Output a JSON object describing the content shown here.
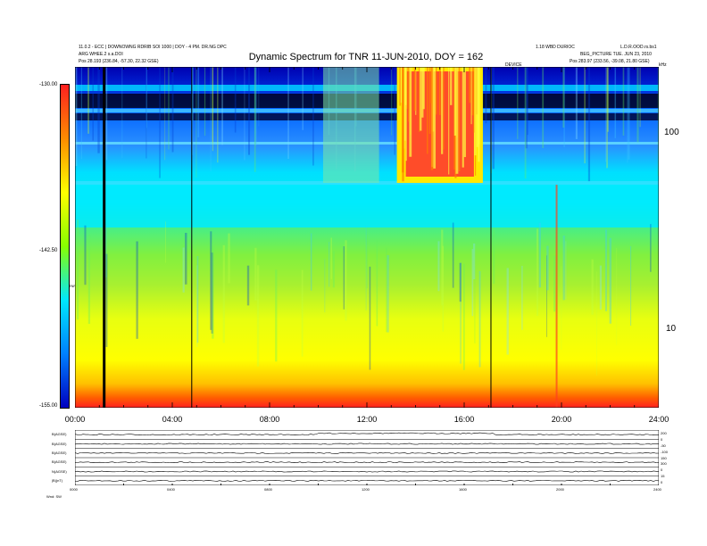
{
  "header": {
    "title": "Dynamic Spectrum for TNR 11-JUN-2010, DOY = 162",
    "left_info_line1": "11.0.2 - ECC | DOWNOWNG RDRIB SOI 1000 | DOY - 4 PM. DR.NG DPC",
    "left_info_line2": "ARG WHEE.2 s.a.DOI",
    "left_info_line3": "Pos 28.193 (236.84, -57.30, 22.32 GSE)",
    "right_info_line1": "1.18 WBD DURIOC",
    "right_info_line2": "L.D.R.OOD.rs.bs1",
    "right_info_line3": "BEG_PICTURE TUE. JUN 23, 2010",
    "right_info_line4": "Pos 283.97 (233.56, -39.08, 21.80 GSE)",
    "mid_tag": "DEVICE",
    "khz_tag": "kHz"
  },
  "colorbar": {
    "top_label": "-130.00",
    "mid_label": "-142.50",
    "bottom_label": "-155.00",
    "unit_label": "TNR",
    "colors": [
      "#ff2020",
      "#ff8c00",
      "#ffff00",
      "#88ff00",
      "#00e8ff",
      "#0080ff",
      "#0000c0"
    ]
  },
  "chart_data": {
    "type": "heatmap",
    "title": "Dynamic Spectrum for TNR 11-JUN-2010, DOY = 162",
    "xlabel": "",
    "ylabel": "kHz",
    "x_ticks": [
      "00:00",
      "04:00",
      "08:00",
      "12:00",
      "16:00",
      "20:00",
      "24:00"
    ],
    "x_range_hours": [
      0,
      24
    ],
    "y_scale": "log",
    "y_ticks": [
      10,
      100
    ],
    "y_range_khz": [
      4,
      220
    ],
    "color_range_db": [
      -155.0,
      -130.0
    ],
    "data_gaps_hours": [
      1.2,
      4.8,
      17.1
    ],
    "storm_hours": [
      13.6,
      16.4
    ],
    "spike_hours": [
      19.8
    ]
  },
  "bottom_panels": {
    "labels": [
      "B(AGSE)",
      "B(AGSE)",
      "B(AGSE)",
      "B(AGSE)",
      "N(AGSE)",
      "|B|(nT)"
    ],
    "right_ticks": [
      "200",
      "0",
      "-50",
      "-100",
      "150",
      "300",
      "0",
      "15",
      "0"
    ],
    "time_ticks": [
      "0000",
      "0400",
      "0800",
      "1200",
      "1600",
      "2000",
      "2400"
    ],
    "footer_label": "Wnd: SW"
  }
}
